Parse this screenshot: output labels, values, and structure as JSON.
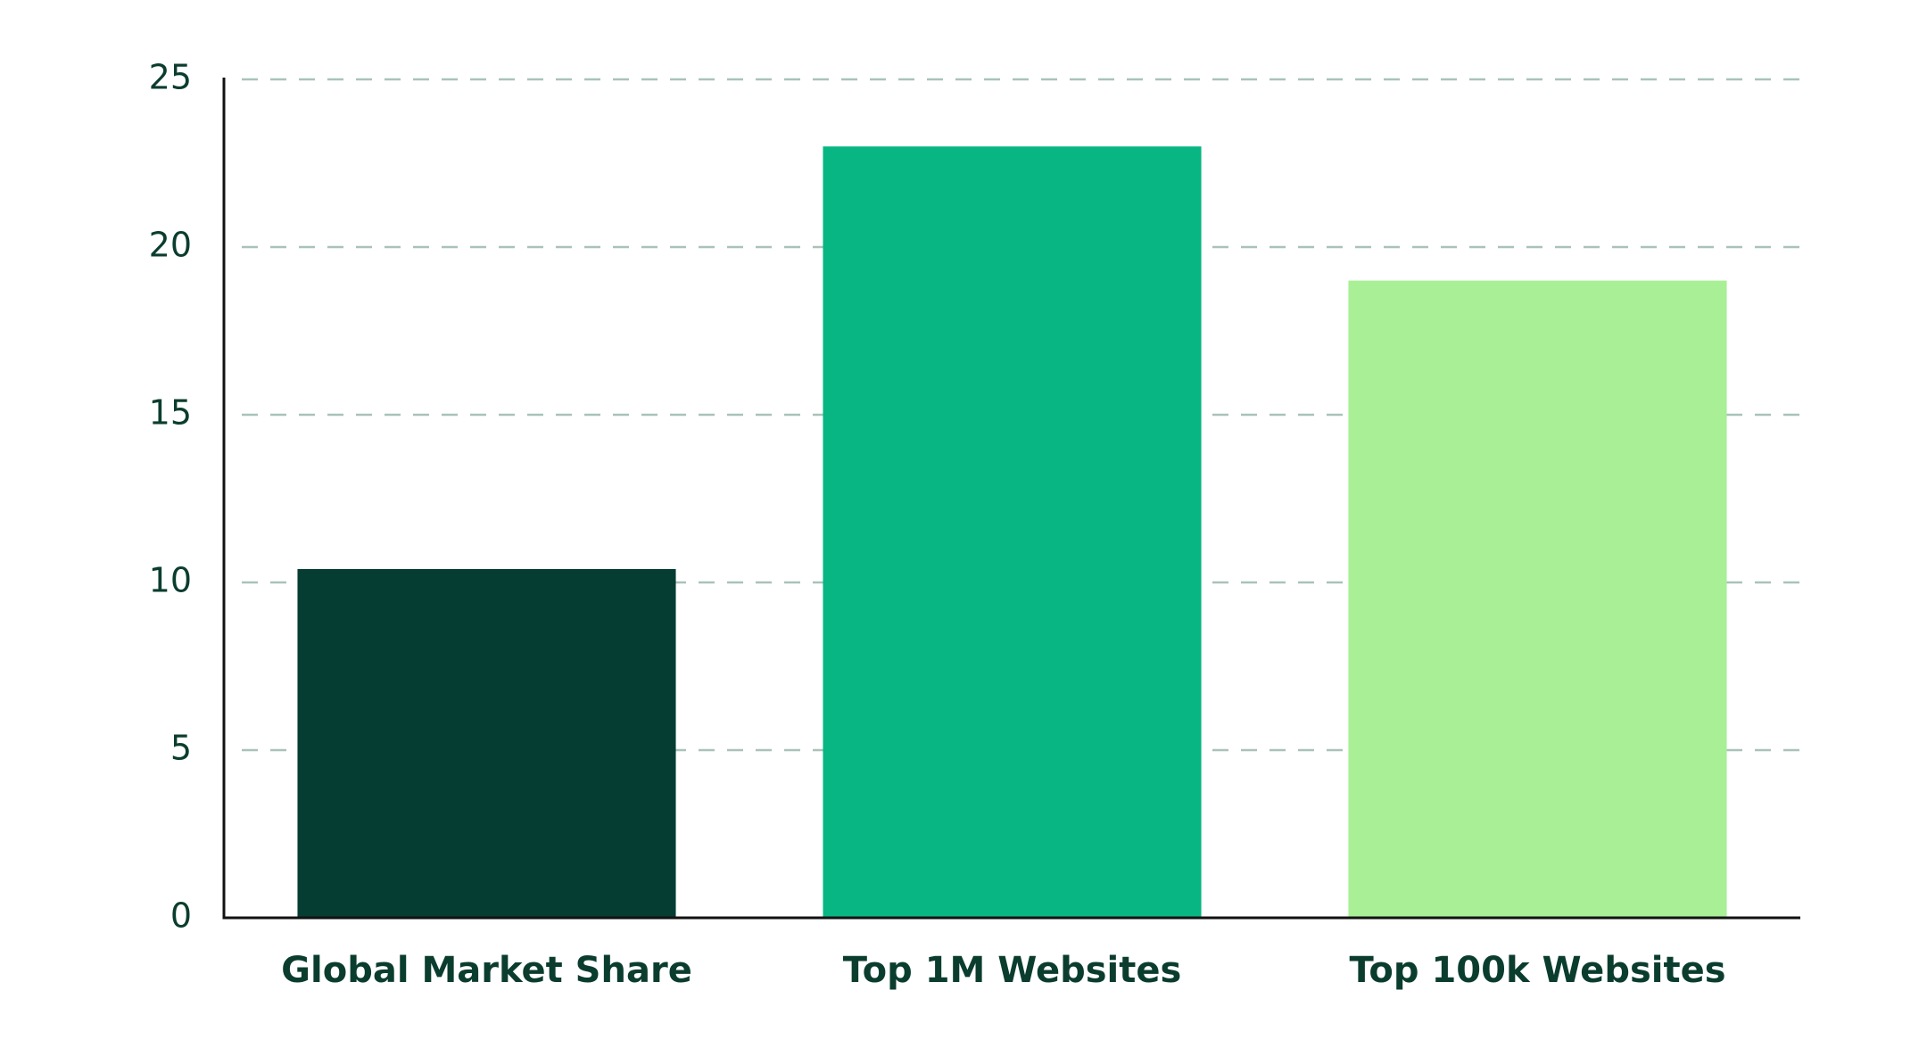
{
  "chart_data": {
    "type": "bar",
    "categories": [
      "Global Market Share",
      "Top 1M Websites",
      "Top 100k Websites"
    ],
    "values": [
      10.4,
      23,
      19
    ],
    "colors": [
      "#063d33",
      "#07b682",
      "#a8ef96"
    ],
    "ylim": [
      0,
      25
    ],
    "yticks": [
      0,
      5,
      10,
      15,
      20,
      25
    ],
    "grid": true
  }
}
